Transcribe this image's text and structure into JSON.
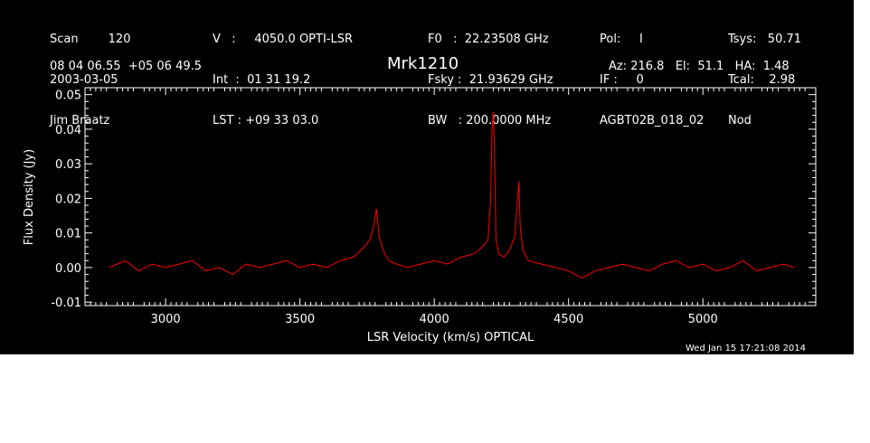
{
  "header": {
    "col1": [
      "Scan        120",
      "2003-03-05",
      "Jim Braatz"
    ],
    "col2": [
      "V   :     4050.0 OPTI-LSR",
      "Int  :  01 31 19.2",
      "LST : +09 33 03.0"
    ],
    "col3": [
      "F0   :  22.23508 GHz",
      "Fsky :  21.93629 GHz",
      "BW   : 200.0000 MHz"
    ],
    "col4": [
      "Pol:     I",
      "IF :     0",
      "AGBT02B_018_02"
    ],
    "col5": [
      "Tsys:   50.71",
      "Tcal:    2.98",
      "Nod"
    ],
    "coords": "08 04 06.55  +05 06 49.5",
    "source": "Mrk1210",
    "azelha": "Az: 216.8   El:  51.1   HA:  1.48",
    "timestamp": "Wed Jan 15 17:21:08 2014"
  },
  "chart_data": {
    "type": "line",
    "xlabel": "LSR Velocity (km/s) OPTICAL",
    "ylabel": "Flux Density (Jy)",
    "xlim": [
      2700,
      5420
    ],
    "ylim": [
      -0.011,
      0.052
    ],
    "xticks": [
      3000,
      3500,
      4000,
      4500,
      5000
    ],
    "yticks": [
      -0.01,
      0.0,
      0.01,
      0.02,
      0.03,
      0.04,
      0.05
    ],
    "ytick_labels": [
      "-0.01",
      "0.00",
      "0.01",
      "0.02",
      "0.03",
      "0.04",
      "0.05"
    ],
    "series_color": "#ff0000",
    "series": [
      {
        "x": [
          2790,
          2850,
          2900,
          2950,
          3000,
          3050,
          3100,
          3150,
          3200,
          3250,
          3300,
          3350,
          3400,
          3450,
          3500,
          3550,
          3600,
          3650,
          3700,
          3740,
          3760,
          3775,
          3785,
          3795,
          3810,
          3830,
          3860,
          3900,
          3950,
          4000,
          4050,
          4100,
          4150,
          4180,
          4200,
          4210,
          4215,
          4220,
          4225,
          4230,
          4240,
          4260,
          4280,
          4300,
          4310,
          4315,
          4320,
          4330,
          4350,
          4400,
          4450,
          4500,
          4550,
          4600,
          4650,
          4700,
          4750,
          4800,
          4850,
          4900,
          4950,
          5000,
          5050,
          5100,
          5150,
          5200,
          5250,
          5300,
          5340
        ],
        "y": [
          0.0,
          0.002,
          -0.001,
          0.001,
          0.0,
          0.001,
          0.002,
          -0.001,
          0.0,
          -0.002,
          0.001,
          0.0,
          0.001,
          0.002,
          0.0,
          0.001,
          0.0,
          0.002,
          0.003,
          0.006,
          0.008,
          0.012,
          0.017,
          0.009,
          0.005,
          0.002,
          0.001,
          0.0,
          0.001,
          0.002,
          0.001,
          0.003,
          0.004,
          0.006,
          0.008,
          0.02,
          0.04,
          0.045,
          0.03,
          0.008,
          0.004,
          0.003,
          0.005,
          0.009,
          0.02,
          0.025,
          0.012,
          0.005,
          0.002,
          0.001,
          0.0,
          -0.001,
          -0.003,
          -0.001,
          0.0,
          0.001,
          0.0,
          -0.001,
          0.001,
          0.002,
          0.0,
          0.001,
          -0.001,
          0.0,
          0.002,
          -0.001,
          0.0,
          0.001,
          0.0
        ]
      }
    ]
  }
}
